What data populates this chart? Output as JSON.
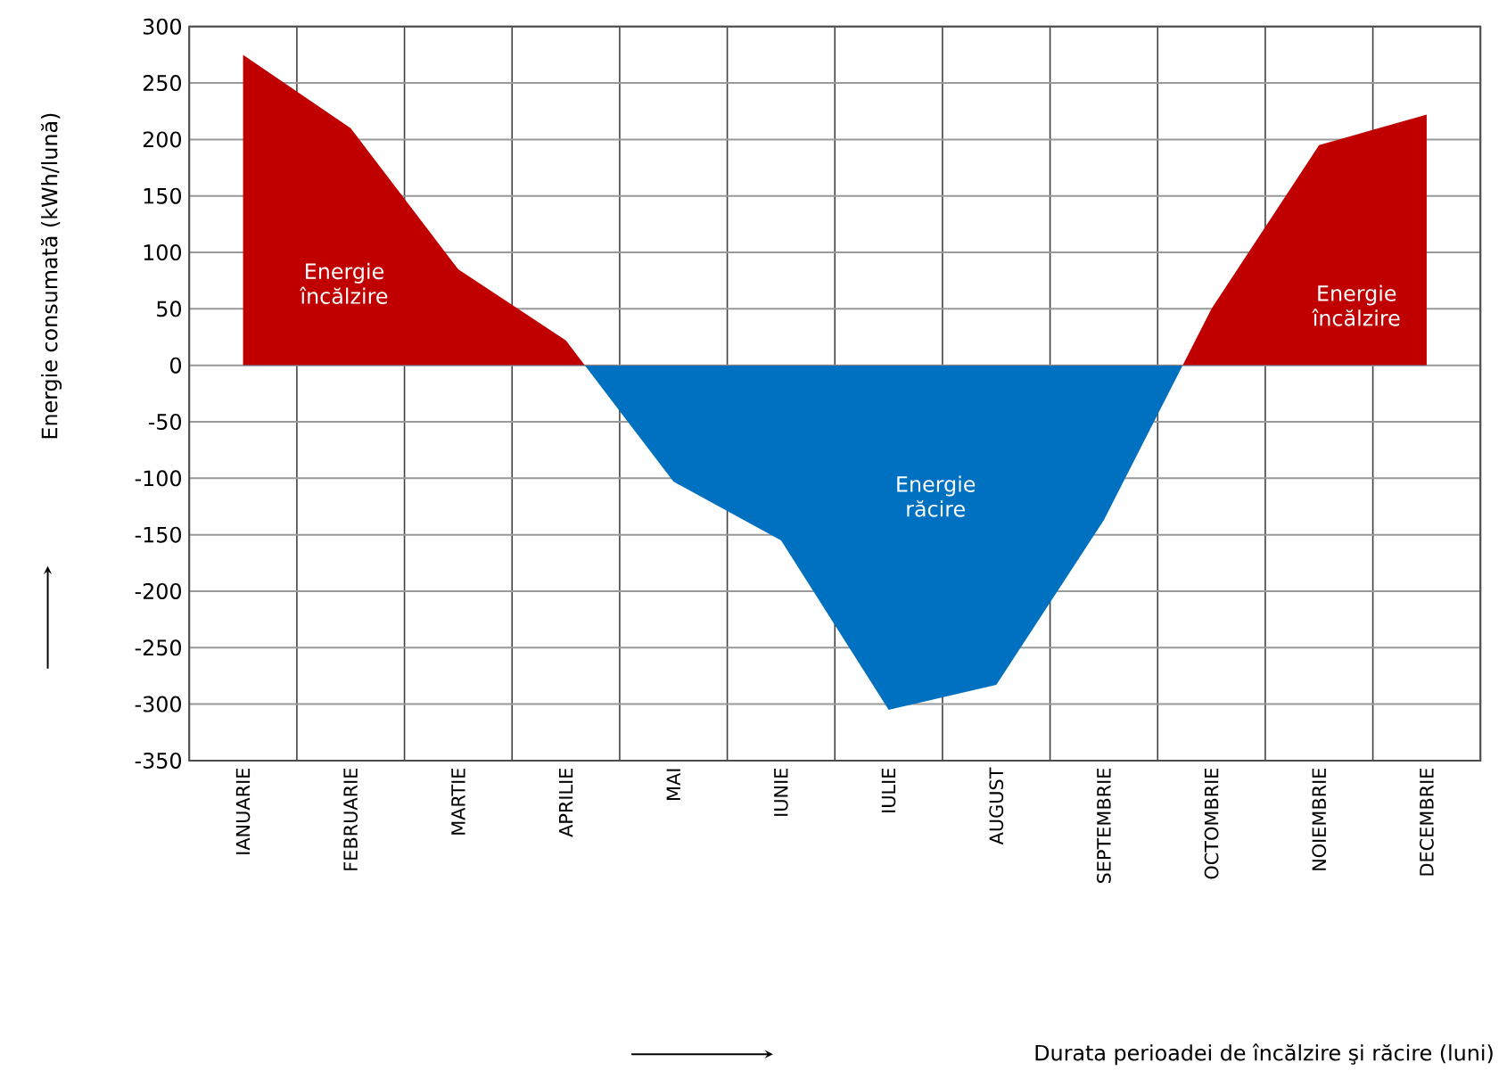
{
  "chart_data": {
    "type": "area",
    "ylabel": "Energie consumată (kWh/lună)",
    "categories": [
      "IANUARIE",
      "FEBRUARIE",
      "MARTIE",
      "APRILIE",
      "MAI",
      "IUNIE",
      "IULIE",
      "AUGUST",
      "SEPTEMBRIE",
      "OCTOMBRIE",
      "NOIEMBRIE",
      "DECEMBRIE"
    ],
    "values": [
      275,
      210,
      85,
      22,
      -103,
      -155,
      -305,
      -283,
      -137,
      50,
      195,
      222
    ],
    "colors": [
      "#c00000",
      "#c00000",
      "#c00000",
      "#c00000",
      "#0070c0",
      "#0070c0",
      "#0070c0",
      "#0070c0",
      "#0070c0",
      "#c00000",
      "#c00000",
      "#c00000"
    ],
    "ylim": [
      -350,
      300
    ],
    "yticks": [
      -350,
      -300,
      -250,
      -200,
      -150,
      -100,
      -50,
      0,
      50,
      100,
      150,
      200,
      250,
      300
    ],
    "grid": true,
    "annotations": [
      "Energie încălzire",
      "Energie răcire",
      "Energie încălzire",
      "Durata perioadei de încălzire şi răcire (luni)"
    ]
  }
}
